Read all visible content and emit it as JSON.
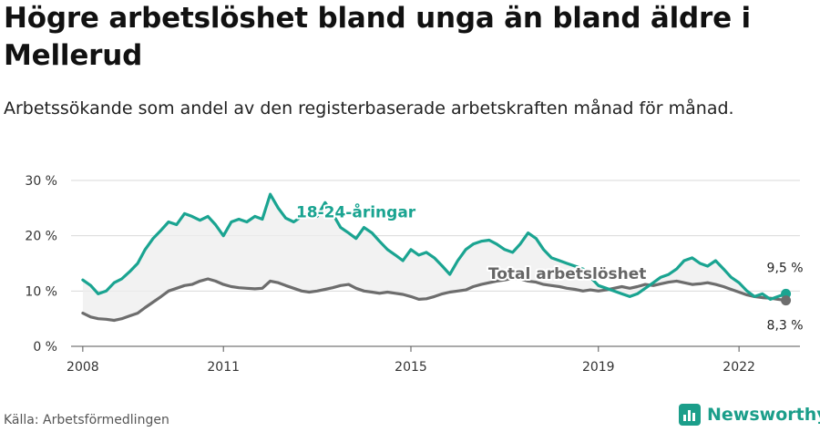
{
  "title": "Högre arbetslöshet bland unga än bland äldre i Mellerud",
  "subtitle": "Arbetssökande som andel av den registerbaserade arbetskraften månad för månad.",
  "source": "Källa: Arbetsförmedlingen",
  "brand": "Newsworthy",
  "colors": {
    "youth": "#1aa491",
    "total": "#6d6d6d",
    "band": "#eeeeee",
    "brand": "#1b9e8a"
  },
  "chart_data": {
    "type": "line",
    "xlim": [
      2007.75,
      2023.3
    ],
    "ylim": [
      0,
      30
    ],
    "x_ticks": [
      2008,
      2011,
      2015,
      2019,
      2022
    ],
    "x_tick_labels": [
      "2008",
      "2011",
      "2015",
      "2019",
      "2022"
    ],
    "y_ticks": [
      0,
      10,
      20,
      30
    ],
    "y_tick_labels": [
      "0 %",
      "10 %",
      "20 %",
      "30 %"
    ],
    "grid": true,
    "series": [
      {
        "name": "18-24-åringar",
        "color": "#1aa491",
        "end_label": "9,5 %",
        "points": [
          [
            2008.0,
            12.0
          ],
          [
            2008.17,
            11.0
          ],
          [
            2008.33,
            9.5
          ],
          [
            2008.5,
            10.0
          ],
          [
            2008.67,
            11.5
          ],
          [
            2008.83,
            12.2
          ],
          [
            2009.0,
            13.5
          ],
          [
            2009.17,
            15.0
          ],
          [
            2009.33,
            17.5
          ],
          [
            2009.5,
            19.5
          ],
          [
            2009.67,
            21.0
          ],
          [
            2009.83,
            22.5
          ],
          [
            2010.0,
            22.0
          ],
          [
            2010.17,
            24.0
          ],
          [
            2010.33,
            23.5
          ],
          [
            2010.5,
            22.8
          ],
          [
            2010.67,
            23.5
          ],
          [
            2010.83,
            22.0
          ],
          [
            2011.0,
            20.0
          ],
          [
            2011.17,
            22.5
          ],
          [
            2011.33,
            23.0
          ],
          [
            2011.5,
            22.5
          ],
          [
            2011.67,
            23.5
          ],
          [
            2011.83,
            23.0
          ],
          [
            2012.0,
            27.5
          ],
          [
            2012.17,
            25.0
          ],
          [
            2012.33,
            23.2
          ],
          [
            2012.5,
            22.5
          ],
          [
            2012.67,
            23.5
          ],
          [
            2012.83,
            24.0
          ],
          [
            2013.0,
            23.5
          ],
          [
            2013.17,
            26.0
          ],
          [
            2013.33,
            24.0
          ],
          [
            2013.5,
            21.5
          ],
          [
            2013.67,
            20.5
          ],
          [
            2013.83,
            19.5
          ],
          [
            2014.0,
            21.5
          ],
          [
            2014.17,
            20.5
          ],
          [
            2014.33,
            19.0
          ],
          [
            2014.5,
            17.5
          ],
          [
            2014.67,
            16.5
          ],
          [
            2014.83,
            15.5
          ],
          [
            2015.0,
            17.5
          ],
          [
            2015.17,
            16.5
          ],
          [
            2015.33,
            17.0
          ],
          [
            2015.5,
            16.0
          ],
          [
            2015.67,
            14.5
          ],
          [
            2015.83,
            13.0
          ],
          [
            2016.0,
            15.5
          ],
          [
            2016.17,
            17.5
          ],
          [
            2016.33,
            18.5
          ],
          [
            2016.5,
            19.0
          ],
          [
            2016.67,
            19.2
          ],
          [
            2016.83,
            18.5
          ],
          [
            2017.0,
            17.5
          ],
          [
            2017.17,
            17.0
          ],
          [
            2017.33,
            18.5
          ],
          [
            2017.5,
            20.5
          ],
          [
            2017.67,
            19.5
          ],
          [
            2017.83,
            17.5
          ],
          [
            2018.0,
            16.0
          ],
          [
            2018.17,
            15.5
          ],
          [
            2018.33,
            15.0
          ],
          [
            2018.5,
            14.5
          ],
          [
            2018.67,
            14.0
          ],
          [
            2018.83,
            12.5
          ],
          [
            2019.0,
            11.0
          ],
          [
            2019.17,
            10.5
          ],
          [
            2019.33,
            10.0
          ],
          [
            2019.5,
            9.5
          ],
          [
            2019.67,
            9.0
          ],
          [
            2019.83,
            9.5
          ],
          [
            2020.0,
            10.5
          ],
          [
            2020.17,
            11.5
          ],
          [
            2020.33,
            12.5
          ],
          [
            2020.5,
            13.0
          ],
          [
            2020.67,
            14.0
          ],
          [
            2020.83,
            15.5
          ],
          [
            2021.0,
            16.0
          ],
          [
            2021.17,
            15.0
          ],
          [
            2021.33,
            14.5
          ],
          [
            2021.5,
            15.5
          ],
          [
            2021.67,
            14.0
          ],
          [
            2021.83,
            12.5
          ],
          [
            2022.0,
            11.5
          ],
          [
            2022.17,
            10.0
          ],
          [
            2022.33,
            9.0
          ],
          [
            2022.5,
            9.5
          ],
          [
            2022.67,
            8.5
          ],
          [
            2022.83,
            9.0
          ],
          [
            2023.0,
            9.5
          ]
        ]
      },
      {
        "name": "Total arbetslöshet",
        "color": "#6d6d6d",
        "end_label": "8,3 %",
        "points": [
          [
            2008.0,
            6.0
          ],
          [
            2008.17,
            5.3
          ],
          [
            2008.33,
            5.0
          ],
          [
            2008.5,
            4.9
          ],
          [
            2008.67,
            4.7
          ],
          [
            2008.83,
            5.0
          ],
          [
            2009.0,
            5.5
          ],
          [
            2009.17,
            6.0
          ],
          [
            2009.33,
            7.0
          ],
          [
            2009.5,
            8.0
          ],
          [
            2009.67,
            9.0
          ],
          [
            2009.83,
            10.0
          ],
          [
            2010.0,
            10.5
          ],
          [
            2010.17,
            11.0
          ],
          [
            2010.33,
            11.2
          ],
          [
            2010.5,
            11.8
          ],
          [
            2010.67,
            12.2
          ],
          [
            2010.83,
            11.8
          ],
          [
            2011.0,
            11.2
          ],
          [
            2011.17,
            10.8
          ],
          [
            2011.33,
            10.6
          ],
          [
            2011.5,
            10.5
          ],
          [
            2011.67,
            10.4
          ],
          [
            2011.83,
            10.5
          ],
          [
            2012.0,
            11.8
          ],
          [
            2012.17,
            11.5
          ],
          [
            2012.33,
            11.0
          ],
          [
            2012.5,
            10.5
          ],
          [
            2012.67,
            10.0
          ],
          [
            2012.83,
            9.8
          ],
          [
            2013.0,
            10.0
          ],
          [
            2013.17,
            10.3
          ],
          [
            2013.33,
            10.6
          ],
          [
            2013.5,
            11.0
          ],
          [
            2013.67,
            11.2
          ],
          [
            2013.83,
            10.5
          ],
          [
            2014.0,
            10.0
          ],
          [
            2014.17,
            9.8
          ],
          [
            2014.33,
            9.6
          ],
          [
            2014.5,
            9.8
          ],
          [
            2014.67,
            9.6
          ],
          [
            2014.83,
            9.4
          ],
          [
            2015.0,
            9.0
          ],
          [
            2015.17,
            8.5
          ],
          [
            2015.33,
            8.6
          ],
          [
            2015.5,
            9.0
          ],
          [
            2015.67,
            9.5
          ],
          [
            2015.83,
            9.8
          ],
          [
            2016.0,
            10.0
          ],
          [
            2016.17,
            10.2
          ],
          [
            2016.33,
            10.8
          ],
          [
            2016.5,
            11.2
          ],
          [
            2016.67,
            11.5
          ],
          [
            2016.83,
            11.8
          ],
          [
            2017.0,
            12.0
          ],
          [
            2017.17,
            12.3
          ],
          [
            2017.33,
            12.2
          ],
          [
            2017.5,
            11.8
          ],
          [
            2017.67,
            11.6
          ],
          [
            2017.83,
            11.2
          ],
          [
            2018.0,
            11.0
          ],
          [
            2018.17,
            10.8
          ],
          [
            2018.33,
            10.5
          ],
          [
            2018.5,
            10.3
          ],
          [
            2018.67,
            10.0
          ],
          [
            2018.83,
            10.2
          ],
          [
            2019.0,
            10.0
          ],
          [
            2019.17,
            10.2
          ],
          [
            2019.33,
            10.5
          ],
          [
            2019.5,
            10.8
          ],
          [
            2019.67,
            10.5
          ],
          [
            2019.83,
            10.8
          ],
          [
            2020.0,
            11.2
          ],
          [
            2020.17,
            11.0
          ],
          [
            2020.33,
            11.3
          ],
          [
            2020.5,
            11.6
          ],
          [
            2020.67,
            11.8
          ],
          [
            2020.83,
            11.5
          ],
          [
            2021.0,
            11.2
          ],
          [
            2021.17,
            11.3
          ],
          [
            2021.33,
            11.5
          ],
          [
            2021.5,
            11.2
          ],
          [
            2021.67,
            10.8
          ],
          [
            2021.83,
            10.3
          ],
          [
            2022.0,
            9.8
          ],
          [
            2022.17,
            9.3
          ],
          [
            2022.33,
            9.0
          ],
          [
            2022.5,
            8.8
          ],
          [
            2022.67,
            8.7
          ],
          [
            2022.83,
            8.5
          ],
          [
            2023.0,
            8.3
          ]
        ]
      }
    ]
  }
}
